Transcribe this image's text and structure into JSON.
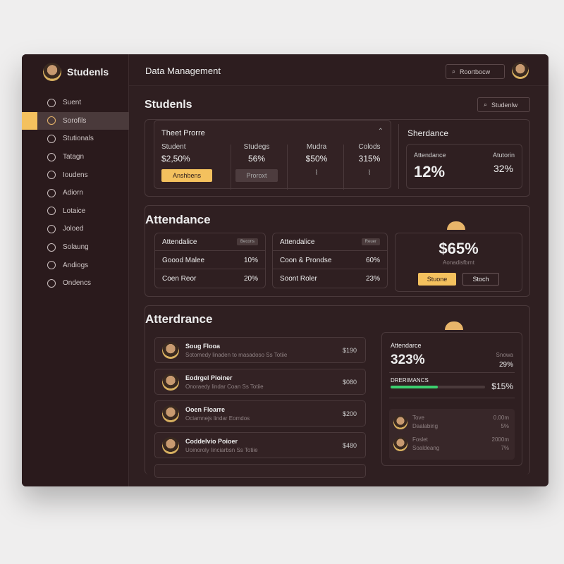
{
  "sidebar": {
    "brand": "Studenls",
    "items": [
      {
        "label": "Suent",
        "icon": "home-icon"
      },
      {
        "label": "Sorofils",
        "icon": "target-icon",
        "active": true
      },
      {
        "label": "Stutionals",
        "icon": "chat-icon"
      },
      {
        "label": "Tatagn",
        "icon": "search-user-icon"
      },
      {
        "label": "Ioudens",
        "icon": "smile-icon"
      },
      {
        "label": "Adiorn",
        "icon": "circle-chevron-icon"
      },
      {
        "label": "Lotaice",
        "icon": "document-icon"
      },
      {
        "label": "Joloed",
        "icon": "folder-icon"
      },
      {
        "label": "Solaung",
        "icon": "square-icon"
      },
      {
        "label": "Andiogs",
        "icon": "user-badge-icon"
      },
      {
        "label": "Ondencs",
        "icon": "user-icon"
      }
    ]
  },
  "header": {
    "title": "Data Management",
    "search": "Roortbocw"
  },
  "students": {
    "title": "Studenls",
    "search": "Studenlw",
    "card": {
      "title": "Theet Prorre",
      "cols": [
        {
          "label": "Student",
          "value": "$2,50%",
          "button": "Anshbens"
        },
        {
          "label": "Studegs",
          "value": "56%",
          "button": "Proroxt"
        },
        {
          "label": "Mudra",
          "value": "$50%"
        },
        {
          "label": "Colods",
          "value": "315%"
        }
      ]
    },
    "side": {
      "title": "Sherdance",
      "a_label": "Attendance",
      "a_value": "12%",
      "b_label": "Atutorin",
      "b_value": "32%"
    }
  },
  "attendance": {
    "title": "Attendance",
    "tables": [
      {
        "header": "Attendalice",
        "badge": "Becons",
        "rows": [
          [
            "Goood Malee",
            "10%"
          ],
          [
            "Coen Reor",
            "20%"
          ]
        ]
      },
      {
        "header": "Attendalice",
        "badge": "Reuer",
        "rows": [
          [
            "Coon & Prondse",
            "60%"
          ],
          [
            "Soont Roler",
            "23%"
          ]
        ]
      }
    ],
    "big": {
      "value": "$65%",
      "caption": "Aonadisfbrnt",
      "primary": "Stuone",
      "secondary": "Stoch"
    }
  },
  "list_section": {
    "title": "Atterdrance",
    "items": [
      {
        "name": "Soug Flooa",
        "desc": "Sotomedy linaden to masadoso Ss Totiie",
        "amount": "$190"
      },
      {
        "name": "Eodrgel Pioiner",
        "desc": "Onoraedy lindar Coan Ss Totiie",
        "amount": "$080"
      },
      {
        "name": "Ooen Floarre",
        "desc": "Ociamnejs lindar Eomdos",
        "amount": "$200"
      },
      {
        "name": "Coddelvio Poioer",
        "desc": "Uoinoroly Iinciarbsn Ss Totiie",
        "amount": "$480"
      }
    ],
    "panel": {
      "label": "Attendarce",
      "value": "323%",
      "right_label": "Snowa",
      "right_value": "29%",
      "bar_label": "DRERIMANCS",
      "bar_value": "$15%",
      "progress": 0.5,
      "progress_color": "#3ccf6e",
      "people": [
        {
          "name": "Tove",
          "sub": "Daalabing",
          "v1": "0.00m",
          "v2": "5%"
        },
        {
          "name": "Foslet",
          "sub": "Soaldeang",
          "v1": "2000m",
          "v2": "7%"
        }
      ]
    }
  },
  "colors": {
    "accent": "#f4c15e",
    "bg": "#2f1f21"
  }
}
